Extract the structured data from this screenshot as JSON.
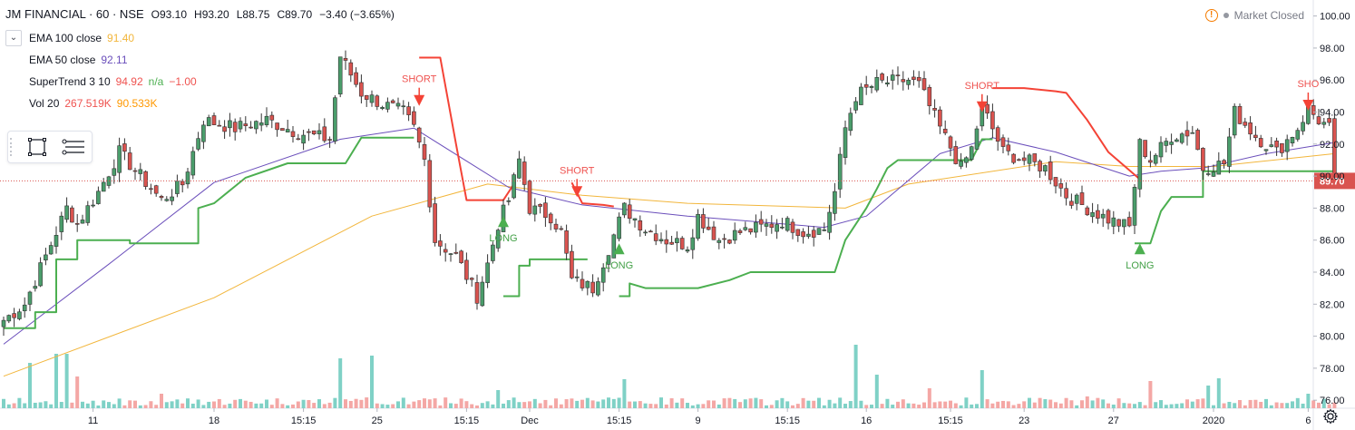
{
  "header": {
    "title": "JM FINANCIAL · 60 · NSE",
    "open": "O93.10",
    "high": "H93.20",
    "low": "L88.75",
    "close": "C89.70",
    "change": "−3.40 (−3.65%)"
  },
  "indicators": [
    {
      "name": "EMA 100 close",
      "values": [
        "91.40"
      ],
      "colors": [
        "#f2b63c"
      ]
    },
    {
      "name": "EMA 50 close",
      "values": [
        "92.11"
      ],
      "colors": [
        "#6b4fbb"
      ]
    },
    {
      "name": "SuperTrend 3 10",
      "values": [
        "94.92",
        "n/a",
        "−1.00"
      ],
      "colors": [
        "#ef5350",
        "#4caf50",
        "#ef5350"
      ]
    },
    {
      "name": "Vol 20",
      "values": [
        "267.519K",
        "90.533K"
      ],
      "colors": [
        "#ef5350",
        "#ff9800"
      ]
    }
  ],
  "market_status": "Market Closed",
  "icons": {
    "collapse": "chevron-down-icon",
    "warning": "warning-icon",
    "settings": "gear-icon",
    "rectangle_tool": "rectangle-icon",
    "lines_tool": "lines-icon"
  },
  "colors": {
    "up": "#4a9d6b",
    "down": "#d9534f",
    "ema100": "#f2b63c",
    "ema50": "#6b4fbb",
    "st_up": "#4caf50",
    "st_down": "#f44336",
    "vol_up": "#7fd1c6",
    "vol_down": "#f4a7a5",
    "last_price": "#d9534f"
  },
  "chart_data": {
    "type": "candlestick",
    "y_axis": {
      "min": 75.5,
      "max": 101,
      "ticks": [
        "100.00",
        "98.00",
        "96.00",
        "94.00",
        "92.00",
        "90.00",
        "88.00",
        "86.00",
        "84.00",
        "82.00",
        "80.00",
        "78.00",
        "76.00"
      ],
      "position": "right"
    },
    "x_ticks": [
      {
        "label": "11",
        "idx": 17
      },
      {
        "label": "18",
        "idx": 40
      },
      {
        "label": "15:15",
        "idx": 57
      },
      {
        "label": "25",
        "idx": 71
      },
      {
        "label": "15:15",
        "idx": 88
      },
      {
        "label": "Dec",
        "idx": 100
      },
      {
        "label": "15:15",
        "idx": 117
      },
      {
        "label": "9",
        "idx": 132
      },
      {
        "label": "15:15",
        "idx": 149
      },
      {
        "label": "16",
        "idx": 164
      },
      {
        "label": "15:15",
        "idx": 180
      },
      {
        "label": "23",
        "idx": 194
      },
      {
        "label": "27",
        "idx": 211
      },
      {
        "label": "2020",
        "idx": 230
      },
      {
        "label": "6",
        "idx": 248
      }
    ],
    "anchors_close": [
      [
        0,
        81
      ],
      [
        4,
        82
      ],
      [
        8,
        85
      ],
      [
        12,
        88
      ],
      [
        14,
        87
      ],
      [
        18,
        89
      ],
      [
        22,
        91.5
      ],
      [
        26,
        90
      ],
      [
        30,
        88.5
      ],
      [
        34,
        89.5
      ],
      [
        38,
        93.5
      ],
      [
        44,
        93
      ],
      [
        50,
        93.5
      ],
      [
        56,
        92.7
      ],
      [
        62,
        92.3
      ],
      [
        64,
        97.5
      ],
      [
        68,
        95.2
      ],
      [
        72,
        94.5
      ],
      [
        76,
        94
      ],
      [
        78,
        93
      ],
      [
        80,
        91
      ],
      [
        82,
        86
      ],
      [
        86,
        85
      ],
      [
        90,
        82.5
      ],
      [
        92,
        84.5
      ],
      [
        94,
        87
      ],
      [
        96,
        88.5
      ],
      [
        98,
        91
      ],
      [
        100,
        88
      ],
      [
        104,
        87.5
      ],
      [
        106,
        86.5
      ],
      [
        108,
        83.5
      ],
      [
        112,
        83
      ],
      [
        116,
        86.3
      ],
      [
        118,
        88
      ],
      [
        122,
        86.7
      ],
      [
        126,
        86
      ],
      [
        130,
        85.7
      ],
      [
        132,
        87.5
      ],
      [
        136,
        86
      ],
      [
        140,
        86.5
      ],
      [
        144,
        86.8
      ],
      [
        148,
        87.2
      ],
      [
        152,
        86.5
      ],
      [
        156,
        86.7
      ],
      [
        158,
        89
      ],
      [
        160,
        93
      ],
      [
        162,
        95
      ],
      [
        166,
        95.8
      ],
      [
        172,
        96
      ],
      [
        174,
        95.7
      ],
      [
        178,
        93
      ],
      [
        180,
        91.8
      ],
      [
        182,
        90.5
      ],
      [
        184,
        91.7
      ],
      [
        186,
        94.4
      ],
      [
        190,
        91.5
      ],
      [
        194,
        91
      ],
      [
        198,
        90.5
      ],
      [
        202,
        88.8
      ],
      [
        206,
        88
      ],
      [
        210,
        87.3
      ],
      [
        214,
        86.8
      ],
      [
        216,
        92
      ],
      [
        218,
        91
      ],
      [
        222,
        92.5
      ],
      [
        226,
        92.8
      ],
      [
        228,
        90.5
      ],
      [
        232,
        90.8
      ],
      [
        234,
        94
      ],
      [
        238,
        92.5
      ],
      [
        242,
        91.5
      ],
      [
        246,
        93
      ],
      [
        248,
        94.2
      ],
      [
        250,
        93.5
      ],
      [
        252,
        93
      ],
      [
        253,
        89.7
      ]
    ],
    "ema100": [
      [
        0,
        77.5
      ],
      [
        40,
        82.4
      ],
      [
        70,
        87.5
      ],
      [
        92,
        89.5
      ],
      [
        110,
        88.8
      ],
      [
        130,
        88.3
      ],
      [
        160,
        88
      ],
      [
        172,
        89.5
      ],
      [
        200,
        90.9
      ],
      [
        214,
        90.6
      ],
      [
        230,
        90.6
      ],
      [
        253,
        91.4
      ]
    ],
    "ema50": [
      [
        0,
        79.5
      ],
      [
        20,
        84.5
      ],
      [
        40,
        89.6
      ],
      [
        64,
        92.3
      ],
      [
        78,
        93
      ],
      [
        96,
        89.3
      ],
      [
        110,
        88.2
      ],
      [
        130,
        87.5
      ],
      [
        156,
        86.8
      ],
      [
        164,
        87.5
      ],
      [
        178,
        91.4
      ],
      [
        188,
        92.4
      ],
      [
        200,
        91.5
      ],
      [
        214,
        90
      ],
      [
        220,
        90.3
      ],
      [
        228,
        90.5
      ],
      [
        240,
        91.4
      ],
      [
        253,
        92.1
      ]
    ],
    "supertrend": [
      {
        "dir": "up",
        "points": [
          [
            0,
            80.5
          ],
          [
            6,
            80.5
          ],
          [
            6,
            81.5
          ],
          [
            10,
            81.5
          ],
          [
            10,
            84.8
          ],
          [
            14,
            84.8
          ],
          [
            14,
            86
          ],
          [
            24,
            86
          ],
          [
            24,
            85.8
          ],
          [
            37,
            85.8
          ],
          [
            37,
            88
          ],
          [
            40,
            88.3
          ],
          [
            46,
            89.9
          ],
          [
            54,
            90.8
          ],
          [
            65,
            90.8
          ],
          [
            68,
            92.4
          ],
          [
            78,
            92.4
          ]
        ]
      },
      {
        "dir": "down",
        "points": [
          [
            79,
            97.4
          ],
          [
            83,
            97.4
          ],
          [
            86,
            92
          ],
          [
            88,
            88.5
          ],
          [
            95,
            88.5
          ],
          [
            97,
            89.5
          ]
        ]
      },
      {
        "dir": "up",
        "points": [
          [
            95,
            82.5
          ],
          [
            98,
            82.5
          ],
          [
            98,
            84.4
          ],
          [
            100,
            84.4
          ],
          [
            100,
            84.8
          ],
          [
            111,
            84.8
          ]
        ]
      },
      {
        "dir": "down",
        "points": [
          [
            108,
            89.6
          ],
          [
            110,
            88.3
          ],
          [
            114,
            88.2
          ],
          [
            116,
            88.1
          ]
        ]
      },
      {
        "dir": "up",
        "points": [
          [
            117,
            82.5
          ],
          [
            119,
            82.5
          ],
          [
            119,
            83.3
          ],
          [
            122,
            83
          ],
          [
            132,
            83
          ],
          [
            138,
            83.5
          ],
          [
            142,
            84
          ],
          [
            158,
            84
          ],
          [
            160,
            86
          ],
          [
            164,
            88
          ],
          [
            166,
            89.2
          ],
          [
            168,
            90.5
          ],
          [
            170,
            91
          ],
          [
            184,
            91
          ],
          [
            186,
            92.3
          ],
          [
            188,
            92.3
          ]
        ]
      },
      {
        "dir": "down",
        "points": [
          [
            188,
            95.5
          ],
          [
            194,
            95.5
          ],
          [
            200,
            95.3
          ],
          [
            202,
            95.2
          ],
          [
            206,
            93.5
          ],
          [
            210,
            91.5
          ],
          [
            216,
            89.8
          ]
        ]
      },
      {
        "dir": "up",
        "points": [
          [
            215,
            85.8
          ],
          [
            218,
            85.8
          ],
          [
            220,
            87.8
          ],
          [
            222,
            88.7
          ],
          [
            228,
            88.7
          ],
          [
            228,
            90.3
          ],
          [
            246,
            90.3
          ],
          [
            253,
            90.3
          ]
        ]
      }
    ],
    "signals": [
      {
        "type": "short",
        "label": "SHORT",
        "idx": 79,
        "price": 94.5
      },
      {
        "type": "long",
        "label": "LONG",
        "idx": 95,
        "price": 87.5
      },
      {
        "type": "short",
        "label": "SHORT",
        "idx": 109,
        "price": 88.8
      },
      {
        "type": "long",
        "label": "LONG",
        "idx": 117,
        "price": 85.8
      },
      {
        "type": "short",
        "label": "SHORT",
        "idx": 186,
        "price": 94.1
      },
      {
        "type": "long",
        "label": "LONG",
        "idx": 216,
        "price": 85.8
      },
      {
        "type": "short",
        "label": "SHO",
        "idx": 248,
        "price": 94.2
      }
    ],
    "last_price": {
      "label": "89.70",
      "value": 89.7
    },
    "volume_spikes": [
      [
        5,
        50
      ],
      [
        10,
        60
      ],
      [
        12,
        60
      ],
      [
        14,
        35
      ],
      [
        30,
        16
      ],
      [
        64,
        55
      ],
      [
        70,
        58
      ],
      [
        94,
        20
      ],
      [
        118,
        32
      ],
      [
        162,
        70
      ],
      [
        166,
        37
      ],
      [
        176,
        22
      ],
      [
        186,
        42
      ],
      [
        206,
        13
      ],
      [
        218,
        30
      ],
      [
        229,
        25
      ],
      [
        231,
        33
      ],
      [
        248,
        16
      ]
    ]
  }
}
